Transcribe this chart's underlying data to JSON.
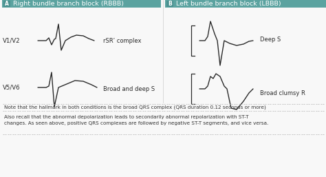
{
  "title_a": "Right bundle branch block (RBBB)",
  "title_b": "Left bundle branch block (LBBB)",
  "label_a": "A",
  "label_b": "B",
  "header_color": "#5ba3a0",
  "header_text_color": "#ffffff",
  "background_color": "#f8f8f8",
  "v1v2_label": "V1/V2",
  "v5v6_label": "V5/V6",
  "rbbb_v1v2_label": "rSR’ complex",
  "rbbb_v5v6_label": "Broad and deep S",
  "lbbb_v1v2_label": "Deep S",
  "lbbb_v5v6_label": "Broad clumsy R",
  "note1": "Note that the hallmark in both conditions is the broad QRS complex (QRS duration 0.12 seconds or more)",
  "note2": "Also recall that the abnormal depolarization leads to secondarily abnormal repolarization with ST-T\nchanges. As seen above, positive QRS complexes are followed by negative ST-T segments, and vice versa.",
  "line_color": "#2a2a2a",
  "note_color": "#333333",
  "dot_color": "#bbbbbb",
  "font_size_title": 6.8,
  "font_size_labels": 6.0,
  "font_size_vleads": 6.2,
  "font_size_notes": 5.2
}
